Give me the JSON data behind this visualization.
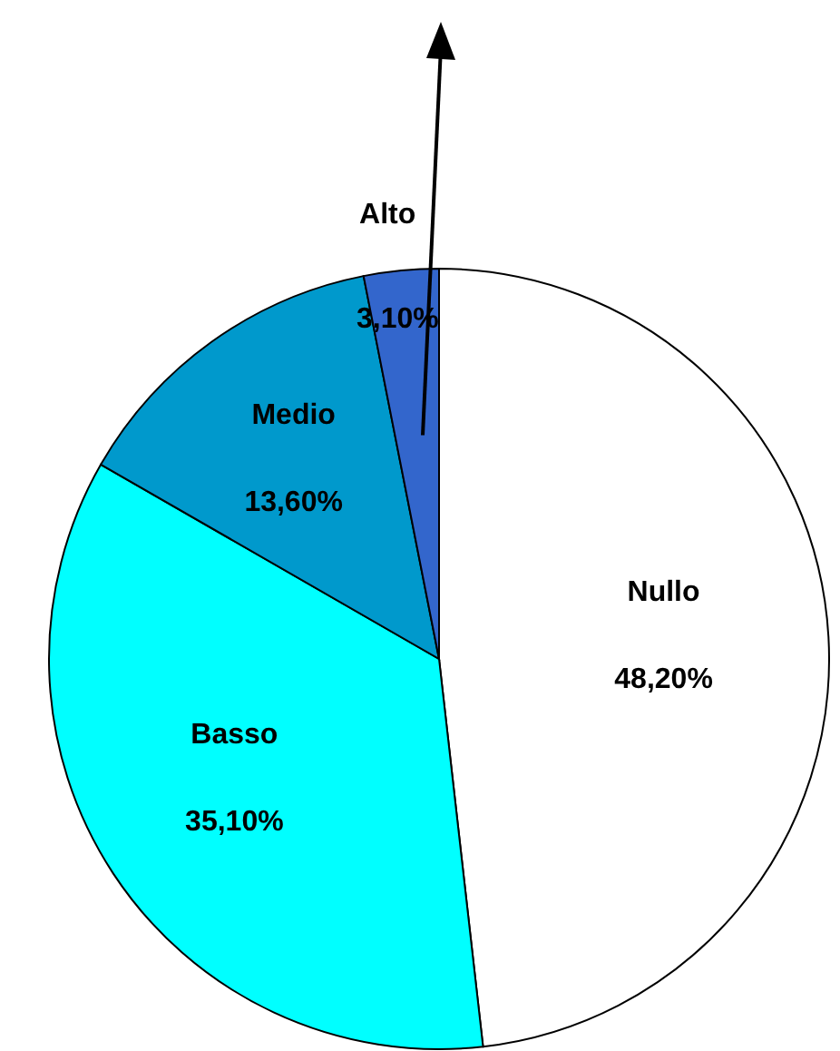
{
  "chart_data": {
    "type": "pie",
    "categories": [
      "Nullo",
      "Basso",
      "Medio",
      "Alto"
    ],
    "values": [
      48.2,
      35.1,
      13.6,
      3.1
    ],
    "value_labels": [
      "48,20%",
      "35,10%",
      "13,60%",
      "3,10%"
    ],
    "colors": [
      "#ffffff",
      "#00ffff",
      "#0099cc",
      "#3366cc"
    ],
    "legend": false
  }
}
